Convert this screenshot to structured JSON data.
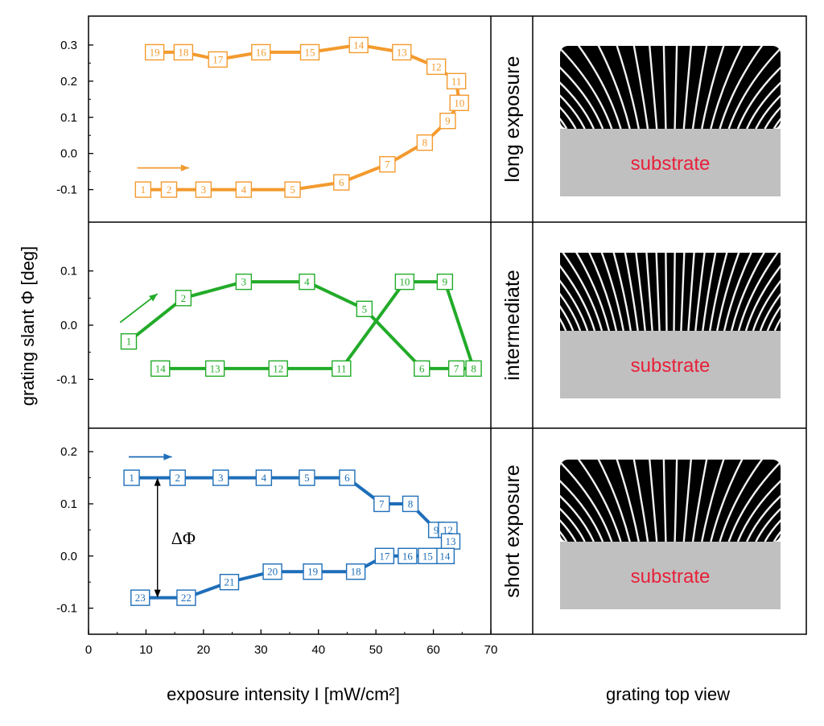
{
  "chart_data": {
    "type": "line",
    "xlabel": "exposure intensity I [mW/cm²]",
    "ylabel": "grating slant Φ [deg]",
    "xlim": [
      0,
      70
    ],
    "xticks": [
      0,
      10,
      20,
      30,
      40,
      50,
      60,
      70
    ],
    "right_column_label": "grating top view",
    "substrate_label": "substrate",
    "annotation": "ΔΦ",
    "panels": [
      {
        "label": "long exposure",
        "color": "#f39a2e",
        "ylim": [
          -0.19,
          0.38
        ],
        "yticks": [
          -0.1,
          0.0,
          0.1,
          0.2,
          0.3
        ],
        "ytick_labels": [
          "-0.1",
          "0.0",
          "0.1",
          "0.2",
          "0.3"
        ],
        "direction_arrow": {
          "from": [
            8.5,
            -0.04
          ],
          "to": [
            17.5,
            -0.04
          ]
        },
        "points": [
          {
            "n": "1",
            "x": 9.5,
            "y": -0.1
          },
          {
            "n": "2",
            "x": 14.0,
            "y": -0.1
          },
          {
            "n": "3",
            "x": 20.0,
            "y": -0.1
          },
          {
            "n": "4",
            "x": 27.0,
            "y": -0.1
          },
          {
            "n": "5",
            "x": 35.5,
            "y": -0.1
          },
          {
            "n": "6",
            "x": 44.0,
            "y": -0.08
          },
          {
            "n": "7",
            "x": 52.0,
            "y": -0.03
          },
          {
            "n": "8",
            "x": 58.5,
            "y": 0.03
          },
          {
            "n": "9",
            "x": 62.5,
            "y": 0.09
          },
          {
            "n": "10",
            "x": 64.5,
            "y": 0.14
          },
          {
            "n": "11",
            "x": 64.0,
            "y": 0.2
          },
          {
            "n": "12",
            "x": 60.5,
            "y": 0.24
          },
          {
            "n": "13",
            "x": 54.5,
            "y": 0.28
          },
          {
            "n": "14",
            "x": 47.0,
            "y": 0.3
          },
          {
            "n": "15",
            "x": 38.5,
            "y": 0.28
          },
          {
            "n": "16",
            "x": 30.0,
            "y": 0.28
          },
          {
            "n": "17",
            "x": 22.5,
            "y": 0.26
          },
          {
            "n": "18",
            "x": 16.5,
            "y": 0.28
          },
          {
            "n": "19",
            "x": 11.5,
            "y": 0.28
          }
        ]
      },
      {
        "label": "intermediate",
        "color": "#22ab29",
        "ylim": [
          -0.19,
          0.19
        ],
        "yticks": [
          -0.1,
          0.0,
          0.1
        ],
        "ytick_labels": [
          "-0.1",
          "0.0",
          "0.1"
        ],
        "direction_arrow": {
          "from": [
            5.5,
            0.005
          ],
          "to": [
            12.0,
            0.058
          ]
        },
        "points": [
          {
            "n": "1",
            "x": 7.0,
            "y": -0.03
          },
          {
            "n": "2",
            "x": 16.5,
            "y": 0.05
          },
          {
            "n": "3",
            "x": 27.0,
            "y": 0.08
          },
          {
            "n": "4",
            "x": 38.0,
            "y": 0.08
          },
          {
            "n": "5",
            "x": 48.0,
            "y": 0.03
          },
          {
            "n": "6",
            "x": 58.0,
            "y": -0.08
          },
          {
            "n": "7",
            "x": 64.0,
            "y": -0.08
          },
          {
            "n": "8",
            "x": 67.0,
            "y": -0.08
          },
          {
            "n": "9",
            "x": 62.0,
            "y": 0.08
          },
          {
            "n": "10",
            "x": 55.0,
            "y": 0.08
          },
          {
            "n": "11",
            "x": 44.0,
            "y": -0.08
          },
          {
            "n": "12",
            "x": 33.0,
            "y": -0.08
          },
          {
            "n": "13",
            "x": 22.0,
            "y": -0.08
          },
          {
            "n": "14",
            "x": 12.5,
            "y": -0.08
          }
        ]
      },
      {
        "label": "short exposure",
        "color": "#1e6eb9",
        "ylim": [
          -0.15,
          0.245
        ],
        "yticks": [
          -0.1,
          0.0,
          0.1,
          0.2
        ],
        "ytick_labels": [
          "-0.1",
          "0.0",
          "0.1",
          "0.2"
        ],
        "direction_arrow": {
          "from": [
            7.0,
            0.19
          ],
          "to": [
            14.5,
            0.19
          ]
        },
        "points": [
          {
            "n": "1",
            "x": 7.5,
            "y": 0.15
          },
          {
            "n": "2",
            "x": 15.5,
            "y": 0.15
          },
          {
            "n": "3",
            "x": 23.0,
            "y": 0.15
          },
          {
            "n": "4",
            "x": 30.5,
            "y": 0.15
          },
          {
            "n": "5",
            "x": 38.0,
            "y": 0.15
          },
          {
            "n": "6",
            "x": 45.0,
            "y": 0.15
          },
          {
            "n": "7",
            "x": 51.0,
            "y": 0.1
          },
          {
            "n": "8",
            "x": 56.0,
            "y": 0.1
          },
          {
            "n": "9",
            "x": 60.5,
            "y": 0.05
          },
          {
            "n": "12",
            "x": 62.5,
            "y": 0.05
          },
          {
            "n": "13",
            "x": 63.0,
            "y": 0.028
          },
          {
            "n": "14",
            "x": 62.0,
            "y": 0.0
          },
          {
            "n": "15",
            "x": 59.0,
            "y": 0.0
          },
          {
            "n": "16",
            "x": 55.5,
            "y": 0.0
          },
          {
            "n": "17",
            "x": 51.5,
            "y": 0.0
          },
          {
            "n": "18",
            "x": 46.5,
            "y": -0.03
          },
          {
            "n": "19",
            "x": 39.0,
            "y": -0.03
          },
          {
            "n": "20",
            "x": 32.0,
            "y": -0.03
          },
          {
            "n": "21",
            "x": 24.5,
            "y": -0.05
          },
          {
            "n": "22",
            "x": 17.0,
            "y": -0.08
          },
          {
            "n": "23",
            "x": 9.0,
            "y": -0.08
          }
        ],
        "delta_arrow": {
          "x": 12.0,
          "y_top": 0.15,
          "y_bottom": -0.08
        }
      }
    ]
  }
}
